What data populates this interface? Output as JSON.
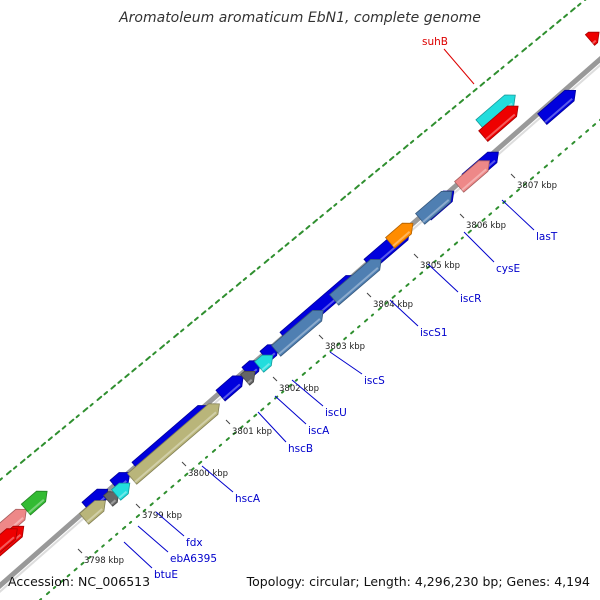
{
  "title": "Aromatoleum aromaticum EbN1, complete genome",
  "footer": {
    "accession": "Accession: NC_006513",
    "stats": "Topology: circular; Length: 4,296,230 bp; Genes: 4,194"
  },
  "colors": {
    "blue_gene": "#0000dd",
    "steelblue_gene": "#4f7fb2",
    "khaki_gene": "#b9b57a",
    "cyan_gene": "#22dddd",
    "gray_gene": "#666666",
    "orange_gene": "#ff8c00",
    "pink_gene": "#ee8888",
    "red_gene": "#ee0000",
    "green_gene": "#33bb33",
    "label_blue": "#0000cc",
    "label_red": "#dd0000",
    "tick_green": "#2f8f2f",
    "backbone": "#888888"
  },
  "kbp_labels": [
    "3798 kbp",
    "3799 kbp",
    "3800 kbp",
    "3801 kbp",
    "3802 kbp",
    "3803 kbp",
    "3804 kbp",
    "3805 kbp",
    "3806 kbp",
    "3807 kbp"
  ],
  "gene_labels": [
    "btuE",
    "ebA6395",
    "fdx",
    "hscA",
    "hscB",
    "iscA",
    "iscU",
    "iscS",
    "iscS1",
    "iscR",
    "cysE",
    "lasT",
    "suhB"
  ]
}
